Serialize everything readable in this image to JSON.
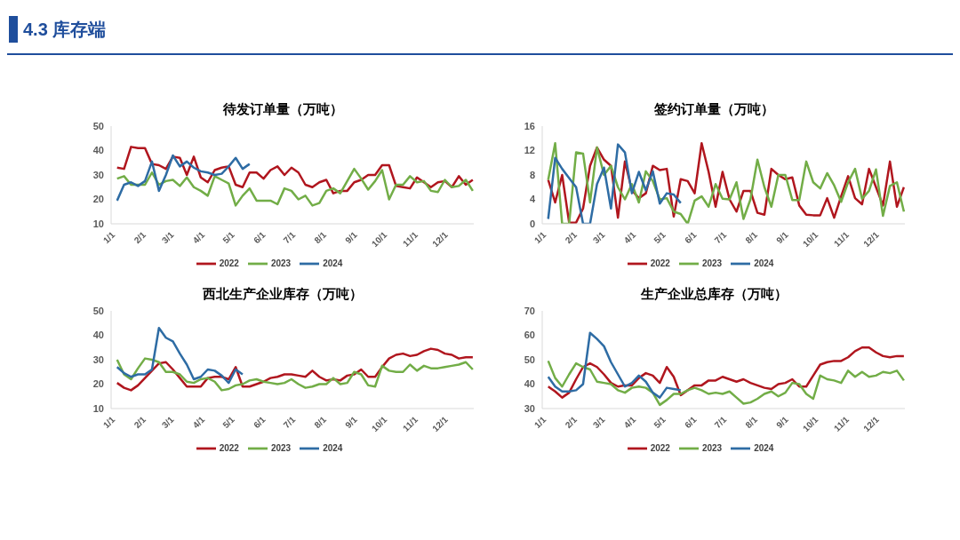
{
  "chart_data": [
    {
      "type": "other",
      "title": "4.3 库存端"
    },
    {
      "type": "line",
      "title": "待发订单量（万吨）",
      "x": [
        "--01-07",
        "--01-14",
        "--01-21",
        "--01-28",
        "--02-04",
        "--02-11",
        "--02-18",
        "--02-25",
        "--03-04",
        "--03-11",
        "--03-18",
        "--03-25",
        "--04-01",
        "--04-08",
        "--04-15",
        "--04-22",
        "--04-29",
        "--05-06",
        "--05-13",
        "--05-20",
        "--05-27",
        "--06-03",
        "--06-10",
        "--06-17",
        "--06-24",
        "--07-01",
        "--07-08",
        "--07-15",
        "--07-22",
        "--07-29",
        "--08-05",
        "--08-12",
        "--08-19",
        "--08-26",
        "--09-02",
        "--09-09",
        "--09-16",
        "--09-23",
        "--09-30",
        "--10-07",
        "--10-14",
        "--10-21",
        "--10-28",
        "--11-04",
        "--11-11",
        "--11-18",
        "--11-25",
        "--12-02",
        "--12-09",
        "--12-16",
        "--12-23",
        "--12-30"
      ],
      "xlim": [
        "--01-01",
        "--12-31"
      ],
      "xticks": [
        {
          "value": "--01-01",
          "label": "1/1"
        },
        {
          "value": "--02-01",
          "label": "2/1"
        },
        {
          "value": "--03-01",
          "label": "3/1"
        },
        {
          "value": "--04-01",
          "label": "4/1"
        },
        {
          "value": "--05-01",
          "label": "5/1"
        },
        {
          "value": "--06-01",
          "label": "6/1"
        },
        {
          "value": "--07-01",
          "label": "7/1"
        },
        {
          "value": "--08-01",
          "label": "8/1"
        },
        {
          "value": "--09-01",
          "label": "9/1"
        },
        {
          "value": "--10-01",
          "label": "10/1"
        },
        {
          "value": "--11-01",
          "label": "11/1"
        },
        {
          "value": "--12-01",
          "label": "12/1"
        }
      ],
      "ylim": [
        10,
        50
      ],
      "yticks": [
        10,
        20,
        30,
        40,
        50
      ],
      "grid": false,
      "legend": "bottom",
      "marker": "none",
      "line_style": "solid",
      "series": [
        {
          "name": "2022",
          "color": "#b0161e",
          "values": [
            33,
            32.5,
            41.5,
            41,
            41,
            34.5,
            34,
            32.5,
            37.5,
            37,
            30,
            37.5,
            29,
            27,
            32,
            33,
            33.5,
            26,
            25,
            31,
            31,
            28.5,
            32,
            33.5,
            30,
            33,
            31,
            26,
            25,
            27,
            28,
            22.5,
            23.5,
            23.5,
            27,
            28,
            30,
            30,
            34,
            34,
            25.5,
            25,
            24.5,
            29,
            27,
            25,
            27,
            27.5,
            25,
            29.5,
            26,
            28
          ]
        },
        {
          "name": "2023",
          "color": "#72ad47",
          "values": [
            28.5,
            29.5,
            26,
            26,
            26,
            31,
            26,
            27.5,
            28,
            25.5,
            29,
            25,
            23.5,
            21.5,
            29.5,
            28,
            26.5,
            17.5,
            21.5,
            24.5,
            19.5,
            19.5,
            19.5,
            18,
            24.5,
            23.5,
            20,
            21.5,
            17.5,
            18.5,
            23.5,
            24.5,
            22.5,
            27.5,
            32.5,
            28.5,
            24,
            27.5,
            32,
            20,
            26,
            26,
            29.5,
            27,
            27.5,
            23.5,
            23,
            28,
            25,
            25.5,
            28,
            23.5
          ]
        },
        {
          "name": "2024",
          "color": "#2e6ca4",
          "values": [
            19.5,
            26,
            27,
            25.5,
            27.5,
            35.5,
            23.5,
            30,
            38,
            33.5,
            35.5,
            33,
            31.5,
            31,
            30,
            30.5,
            33.5,
            37,
            32.5,
            34.5,
            null,
            null,
            null,
            null,
            null,
            null,
            null,
            null,
            null,
            null,
            null,
            null,
            null,
            null,
            null,
            null,
            null,
            null,
            null,
            null,
            null,
            null,
            null,
            null,
            null,
            null,
            null,
            null,
            null,
            null,
            null,
            null
          ]
        }
      ]
    },
    {
      "type": "line",
      "title": "签约订单量（万吨）",
      "x": [
        "--01-07",
        "--01-14",
        "--01-21",
        "--01-28",
        "--02-04",
        "--02-11",
        "--02-18",
        "--02-25",
        "--03-04",
        "--03-11",
        "--03-18",
        "--03-25",
        "--04-01",
        "--04-08",
        "--04-15",
        "--04-22",
        "--04-29",
        "--05-06",
        "--05-13",
        "--05-20",
        "--05-27",
        "--06-03",
        "--06-10",
        "--06-17",
        "--06-24",
        "--07-01",
        "--07-08",
        "--07-15",
        "--07-22",
        "--07-29",
        "--08-05",
        "--08-12",
        "--08-19",
        "--08-26",
        "--09-02",
        "--09-09",
        "--09-16",
        "--09-23",
        "--09-30",
        "--10-07",
        "--10-14",
        "--10-21",
        "--10-28",
        "--11-04",
        "--11-11",
        "--11-18",
        "--11-25",
        "--12-02",
        "--12-09",
        "--12-16",
        "--12-23",
        "--12-30"
      ],
      "xlim": [
        "--01-01",
        "--12-31"
      ],
      "xticks": [
        {
          "value": "--01-01",
          "label": "1/1"
        },
        {
          "value": "--02-01",
          "label": "2/1"
        },
        {
          "value": "--03-01",
          "label": "3/1"
        },
        {
          "value": "--04-01",
          "label": "4/1"
        },
        {
          "value": "--05-01",
          "label": "5/1"
        },
        {
          "value": "--06-01",
          "label": "6/1"
        },
        {
          "value": "--07-01",
          "label": "7/1"
        },
        {
          "value": "--08-01",
          "label": "8/1"
        },
        {
          "value": "--09-01",
          "label": "9/1"
        },
        {
          "value": "--10-01",
          "label": "10/1"
        },
        {
          "value": "--11-01",
          "label": "11/1"
        },
        {
          "value": "--12-01",
          "label": "12/1"
        }
      ],
      "ylim": [
        0,
        16
      ],
      "yticks": [
        0,
        4,
        8,
        12,
        16
      ],
      "grid": false,
      "legend": "bottom",
      "marker": "none",
      "line_style": "solid",
      "series": [
        {
          "name": "2022",
          "color": "#b0161e",
          "values": [
            7.2,
            3.5,
            8,
            0.2,
            0.2,
            2.5,
            9.5,
            12.5,
            10.5,
            9.5,
            1,
            10.2,
            5.5,
            4.2,
            5,
            9.5,
            8.8,
            9,
            1.2,
            7.3,
            7,
            5,
            13.2,
            8.5,
            2.8,
            8.5,
            4,
            2,
            5.4,
            5.4,
            1.8,
            1.5,
            9,
            8,
            7.3,
            7.6,
            3,
            1.5,
            1.4,
            1.4,
            4.2,
            1,
            4.5,
            7.8,
            4.2,
            3.2,
            9,
            6,
            3,
            10.2,
            2.8,
            6
          ]
        },
        {
          "name": "2023",
          "color": "#72ad47",
          "values": [
            7.2,
            13.2,
            0,
            0,
            11.7,
            11.5,
            3.5,
            12.5,
            8,
            9.5,
            6,
            4,
            6.5,
            3.5,
            8.6,
            7,
            4,
            4.2,
            2,
            1.6,
            0,
            3.8,
            4.5,
            2.8,
            6.5,
            4.1,
            4,
            6.8,
            0.8,
            4,
            10.5,
            6,
            2.8,
            8,
            8,
            3.9,
            3.9,
            10.2,
            6.8,
            5.8,
            8.3,
            6.3,
            3.6,
            6.8,
            9,
            4.1,
            5.4,
            8.9,
            1.3,
            6.2,
            6.8,
            2
          ]
        },
        {
          "name": "2024",
          "color": "#2e6ca4",
          "values": [
            0.8,
            10.8,
            9,
            7.5,
            6,
            0,
            0,
            6.5,
            9.2,
            2.5,
            13,
            11.7,
            5,
            8.5,
            5.5,
            8.6,
            3.3,
            5,
            4.8,
            3.4,
            null,
            null,
            null,
            null,
            null,
            null,
            null,
            null,
            null,
            null,
            null,
            null,
            null,
            null,
            null,
            null,
            null,
            null,
            null,
            null,
            null,
            null,
            null,
            null,
            null,
            null,
            null,
            null,
            null,
            null,
            null,
            null
          ]
        }
      ]
    },
    {
      "type": "line",
      "title": "西北生产企业库存（万吨）",
      "x": [
        "--01-07",
        "--01-14",
        "--01-21",
        "--01-28",
        "--02-04",
        "--02-11",
        "--02-18",
        "--02-25",
        "--03-04",
        "--03-11",
        "--03-18",
        "--03-25",
        "--04-01",
        "--04-08",
        "--04-15",
        "--04-22",
        "--04-29",
        "--05-06",
        "--05-13",
        "--05-20",
        "--05-27",
        "--06-03",
        "--06-10",
        "--06-17",
        "--06-24",
        "--07-01",
        "--07-08",
        "--07-15",
        "--07-22",
        "--07-29",
        "--08-05",
        "--08-12",
        "--08-19",
        "--08-26",
        "--09-02",
        "--09-09",
        "--09-16",
        "--09-23",
        "--09-30",
        "--10-07",
        "--10-14",
        "--10-21",
        "--10-28",
        "--11-04",
        "--11-11",
        "--11-18",
        "--11-25",
        "--12-02",
        "--12-09",
        "--12-16",
        "--12-23",
        "--12-30"
      ],
      "xlim": [
        "--01-01",
        "--12-31"
      ],
      "xticks": [
        {
          "value": "--01-01",
          "label": "1/1"
        },
        {
          "value": "--02-01",
          "label": "2/1"
        },
        {
          "value": "--03-01",
          "label": "3/1"
        },
        {
          "value": "--04-01",
          "label": "4/1"
        },
        {
          "value": "--05-01",
          "label": "5/1"
        },
        {
          "value": "--06-01",
          "label": "6/1"
        },
        {
          "value": "--07-01",
          "label": "7/1"
        },
        {
          "value": "--08-01",
          "label": "8/1"
        },
        {
          "value": "--09-01",
          "label": "9/1"
        },
        {
          "value": "--10-01",
          "label": "10/1"
        },
        {
          "value": "--11-01",
          "label": "11/1"
        },
        {
          "value": "--12-01",
          "label": "12/1"
        }
      ],
      "ylim": [
        10,
        50
      ],
      "yticks": [
        10,
        20,
        30,
        40,
        50
      ],
      "grid": false,
      "legend": "bottom",
      "marker": "none",
      "line_style": "solid",
      "series": [
        {
          "name": "2022",
          "color": "#b0161e",
          "values": [
            20.5,
            18.5,
            17.5,
            19.5,
            22.5,
            25.5,
            28.5,
            29,
            26,
            22.5,
            19,
            19,
            19,
            22.5,
            23,
            23,
            22,
            27,
            19,
            19,
            20,
            21,
            22.5,
            23,
            24,
            24,
            23.5,
            23,
            25.5,
            23,
            21.5,
            22,
            21.5,
            23.5,
            24,
            26,
            23,
            23,
            27,
            30.5,
            32,
            32.5,
            31.5,
            32,
            33.5,
            34.5,
            34,
            32.5,
            32,
            30.5,
            31,
            31
          ]
        },
        {
          "name": "2023",
          "color": "#72ad47",
          "values": [
            30,
            24,
            22,
            26.5,
            30.5,
            30,
            29,
            25,
            25,
            24,
            21,
            20.5,
            22,
            22.5,
            21,
            17.5,
            18,
            19.5,
            20,
            21.5,
            22,
            21,
            20.5,
            20,
            20.5,
            22,
            20,
            18.5,
            19,
            20,
            20,
            22.5,
            20,
            20.5,
            25,
            24,
            19.5,
            19,
            27.5,
            25.5,
            25,
            25,
            28,
            25.5,
            27.5,
            26.5,
            26.5,
            27,
            27.5,
            28,
            29,
            26
          ]
        },
        {
          "name": "2024",
          "color": "#2e6ca4",
          "values": [
            27,
            24.5,
            23,
            24,
            24,
            26,
            43,
            39,
            37.5,
            32.5,
            28,
            22,
            23,
            26,
            25.5,
            23.5,
            20.5,
            26,
            24,
            null,
            null,
            null,
            null,
            null,
            null,
            null,
            null,
            null,
            null,
            null,
            null,
            null,
            null,
            null,
            null,
            null,
            null,
            null,
            null,
            null,
            null,
            null,
            null,
            null,
            null,
            null,
            null,
            null,
            null,
            null,
            null,
            null
          ]
        }
      ]
    },
    {
      "type": "line",
      "title": "生产企业总库存（万吨）",
      "x": [
        "--01-07",
        "--01-14",
        "--01-21",
        "--01-28",
        "--02-04",
        "--02-11",
        "--02-18",
        "--02-25",
        "--03-04",
        "--03-11",
        "--03-18",
        "--03-25",
        "--04-01",
        "--04-08",
        "--04-15",
        "--04-22",
        "--04-29",
        "--05-06",
        "--05-13",
        "--05-20",
        "--05-27",
        "--06-03",
        "--06-10",
        "--06-17",
        "--06-24",
        "--07-01",
        "--07-08",
        "--07-15",
        "--07-22",
        "--07-29",
        "--08-05",
        "--08-12",
        "--08-19",
        "--08-26",
        "--09-02",
        "--09-09",
        "--09-16",
        "--09-23",
        "--09-30",
        "--10-07",
        "--10-14",
        "--10-21",
        "--10-28",
        "--11-04",
        "--11-11",
        "--11-18",
        "--11-25",
        "--12-02",
        "--12-09",
        "--12-16",
        "--12-23",
        "--12-30"
      ],
      "xlim": [
        "--01-01",
        "--12-31"
      ],
      "xticks": [
        {
          "value": "--01-01",
          "label": "1/1"
        },
        {
          "value": "--02-01",
          "label": "2/1"
        },
        {
          "value": "--03-01",
          "label": "3/1"
        },
        {
          "value": "--04-01",
          "label": "4/1"
        },
        {
          "value": "--05-01",
          "label": "5/1"
        },
        {
          "value": "--06-01",
          "label": "6/1"
        },
        {
          "value": "--07-01",
          "label": "7/1"
        },
        {
          "value": "--08-01",
          "label": "8/1"
        },
        {
          "value": "--09-01",
          "label": "9/1"
        },
        {
          "value": "--10-01",
          "label": "10/1"
        },
        {
          "value": "--11-01",
          "label": "11/1"
        },
        {
          "value": "--12-01",
          "label": "12/1"
        }
      ],
      "ylim": [
        30,
        70
      ],
      "yticks": [
        30,
        40,
        50,
        60,
        70
      ],
      "grid": false,
      "legend": "bottom",
      "marker": "none",
      "line_style": "solid",
      "series": [
        {
          "name": "2022",
          "color": "#b0161e",
          "values": [
            39,
            37,
            34.5,
            36.5,
            42,
            47,
            48.5,
            47,
            44,
            40.5,
            39,
            39.5,
            39.5,
            42.5,
            44.5,
            43.5,
            40.5,
            47,
            43,
            35.5,
            37.5,
            39.5,
            39.5,
            41.5,
            41.5,
            43,
            42,
            41,
            42,
            40.5,
            39.5,
            38.5,
            38,
            40,
            40.5,
            42,
            39,
            39,
            43.5,
            48,
            49,
            49.5,
            49.5,
            51,
            53.5,
            55,
            55,
            53,
            51.5,
            51,
            51.5,
            51.5
          ]
        },
        {
          "name": "2023",
          "color": "#72ad47",
          "values": [
            49.5,
            42.5,
            39,
            44,
            48.5,
            47,
            46,
            41,
            40.5,
            40,
            37.5,
            36.5,
            38.5,
            39,
            38.5,
            36.5,
            31.5,
            33.5,
            36,
            36,
            37.5,
            38.5,
            37.5,
            36,
            36.5,
            36,
            37,
            34.5,
            32,
            32.5,
            34,
            36,
            37,
            35,
            36.5,
            40.5,
            40,
            36,
            34,
            43.5,
            42,
            41.5,
            40.5,
            45.5,
            43,
            45,
            43,
            43.5,
            45,
            44.5,
            45.5,
            41.5
          ]
        },
        {
          "name": "2024",
          "color": "#2e6ca4",
          "values": [
            43,
            39,
            37,
            37,
            37.5,
            40,
            61,
            58.5,
            55.5,
            49,
            44,
            39,
            40.5,
            43.5,
            41,
            36.5,
            34.5,
            38.5,
            38,
            37.5,
            null,
            null,
            null,
            null,
            null,
            null,
            null,
            null,
            null,
            null,
            null,
            null,
            null,
            null,
            null,
            null,
            null,
            null,
            null,
            null,
            null,
            null,
            null,
            null,
            null,
            null,
            null,
            null,
            null,
            null,
            null,
            null
          ]
        }
      ]
    }
  ]
}
